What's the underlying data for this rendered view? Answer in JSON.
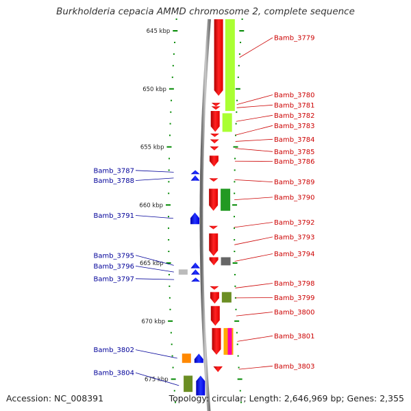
{
  "title": "Burkholderia cepacia AMMD chromosome 2, complete sequence",
  "footer": {
    "accession": "Accession: NC_008391",
    "topology": "Topology: circular; Length: 2,646,969 bp; Genes: 2,355"
  },
  "colors": {
    "forward_gene": "#ff0000",
    "reverse_gene": "#0000ff",
    "forward_label": "#cc0000",
    "reverse_label": "#000099",
    "tick": "#008800",
    "backbone": "#888888"
  },
  "scale": {
    "unit": "kbp",
    "labels": [
      {
        "kbp": 645,
        "text": "645 kbp"
      },
      {
        "kbp": 650,
        "text": "650 kbp"
      },
      {
        "kbp": 655,
        "text": "655 kbp"
      },
      {
        "kbp": 660,
        "text": "660 kbp"
      },
      {
        "kbp": 665,
        "text": "665 kbp"
      },
      {
        "kbp": 670,
        "text": "670 kbp"
      },
      {
        "kbp": 675,
        "text": "675 kbp"
      }
    ]
  },
  "forward_genes": [
    {
      "label": "Bamb_3779",
      "start": 644.0,
      "end": 650.6
    },
    {
      "label": "Bamb_3780",
      "start": 651.2,
      "end": 651.5
    },
    {
      "label": "Bamb_3781",
      "start": 651.5,
      "end": 651.75
    },
    {
      "label": "Bamb_3782",
      "start": 651.9,
      "end": 653.7
    },
    {
      "label": "Bamb_3783",
      "start": 653.85,
      "end": 654.1
    },
    {
      "label": "Bamb_3784",
      "start": 654.35,
      "end": 654.7
    },
    {
      "label": "Bamb_3785",
      "start": 654.95,
      "end": 655.3
    },
    {
      "label": "Bamb_3786",
      "start": 655.75,
      "end": 656.7
    },
    {
      "label": "Bamb_3789",
      "start": 657.7,
      "end": 657.95
    },
    {
      "label": "Bamb_3790",
      "start": 658.6,
      "end": 660.5
    },
    {
      "label": "Bamb_3792",
      "start": 661.8,
      "end": 662.05
    },
    {
      "label": "Bamb_3793",
      "start": 662.45,
      "end": 664.4
    },
    {
      "label": "Bamb_3794",
      "start": 664.5,
      "end": 665.2
    },
    {
      "label": "Bamb_3798",
      "start": 667.0,
      "end": 667.3
    },
    {
      "label": "Bamb_3799",
      "start": 667.5,
      "end": 668.5
    },
    {
      "label": "Bamb_3800",
      "start": 668.7,
      "end": 670.4
    },
    {
      "label": "Bamb_3801",
      "start": 670.6,
      "end": 672.9
    },
    {
      "label": "Bamb_3803",
      "start": 673.9,
      "end": 674.4
    }
  ],
  "forward_label_slots": [
    55.0,
    138.5,
    153.3,
    168.3,
    183.3,
    203.3,
    221.3,
    235.5,
    265.6,
    287.9,
    324.5,
    345.9,
    370.5,
    413.5,
    434.5,
    455.5,
    490.3,
    534.3
  ],
  "reverse_genes": [
    {
      "label": "Bamb_3787",
      "start": 657.0,
      "end": 657.35
    },
    {
      "label": "Bamb_3788",
      "start": 657.45,
      "end": 657.9
    },
    {
      "label": "Bamb_3791",
      "start": 660.65,
      "end": 661.65
    },
    {
      "label": "Bamb_3795",
      "start": 664.95,
      "end": 665.45
    },
    {
      "label": "Bamb_3796",
      "start": 665.55,
      "end": 666.0
    },
    {
      "label": "Bamb_3797",
      "start": 666.25,
      "end": 666.6
    },
    {
      "label": "Bamb_3802",
      "start": 672.8,
      "end": 673.6
    },
    {
      "label": "Bamb_3804",
      "start": 674.7,
      "end": 676.4
    }
  ],
  "reverse_label_slots": [
    248.8,
    263.5,
    314.5,
    372.8,
    388.4,
    406.8,
    510.6,
    544.2
  ],
  "forward_features": [
    {
      "start": 644.0,
      "end": 651.9,
      "color": "#aaff33"
    },
    {
      "start": 652.1,
      "end": 653.7,
      "color": "#aaff33"
    },
    {
      "start": 658.6,
      "end": 660.5,
      "color": "#229922"
    },
    {
      "start": 664.5,
      "end": 665.2,
      "color": "#666666"
    },
    {
      "start": 667.5,
      "end": 668.4,
      "color": "#6b8e23"
    },
    {
      "start": 670.6,
      "end": 672.9,
      "color": "#ffaa00"
    },
    {
      "start": 670.6,
      "end": 672.9,
      "color": "#ff00aa"
    }
  ],
  "reverse_features": [
    {
      "start": 665.55,
      "end": 666.0,
      "color": "#bbbbbb"
    },
    {
      "start": 672.8,
      "end": 673.6,
      "color": "#ff8800"
    },
    {
      "start": 674.7,
      "end": 676.1,
      "color": "#6b8e23"
    }
  ]
}
